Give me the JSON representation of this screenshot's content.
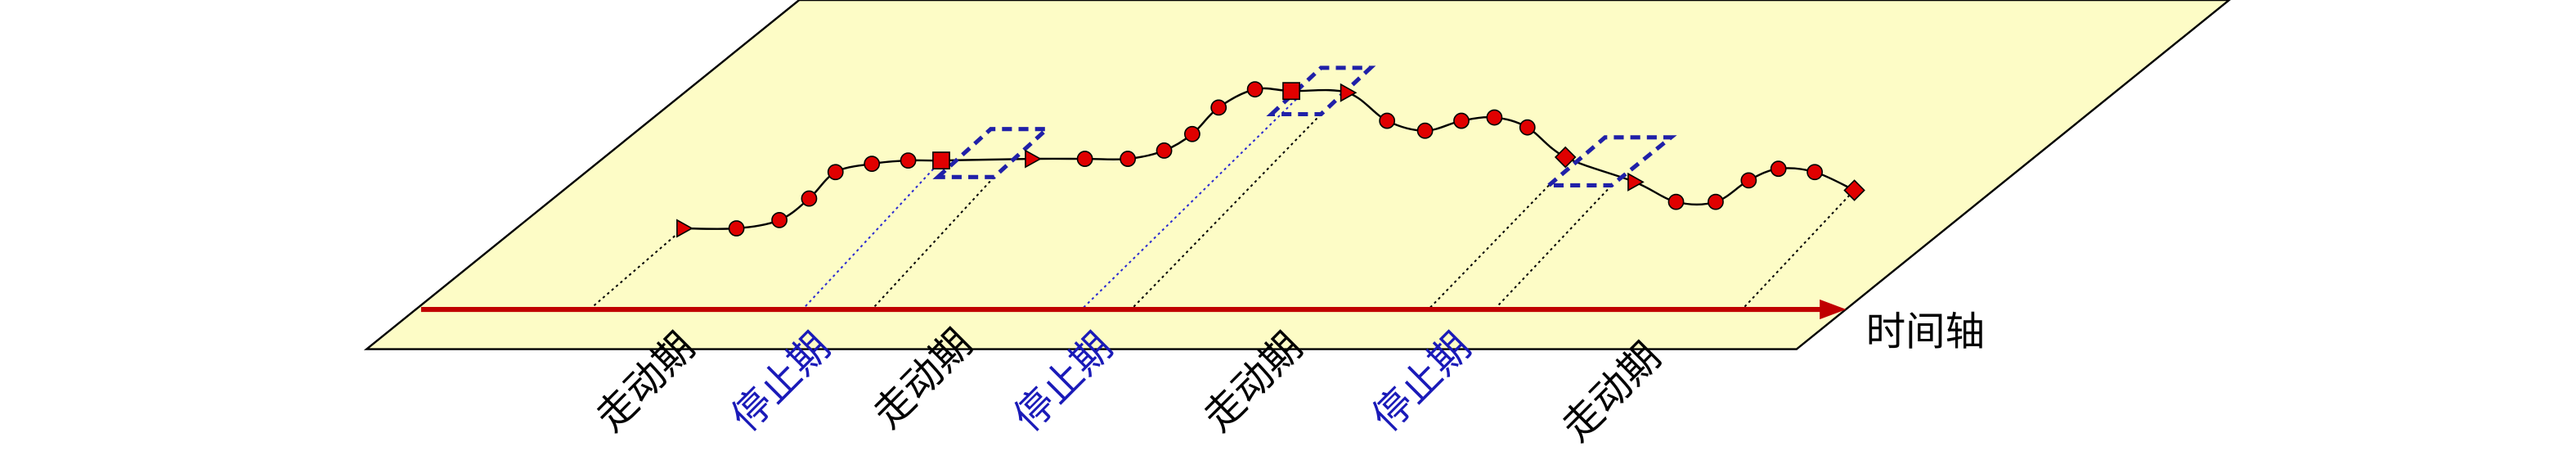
{
  "periods": [
    "走动期",
    "停止期",
    "走动期",
    "停止期",
    "走动期",
    "停止期",
    "走动期"
  ],
  "axis_label": "时间轴"
}
